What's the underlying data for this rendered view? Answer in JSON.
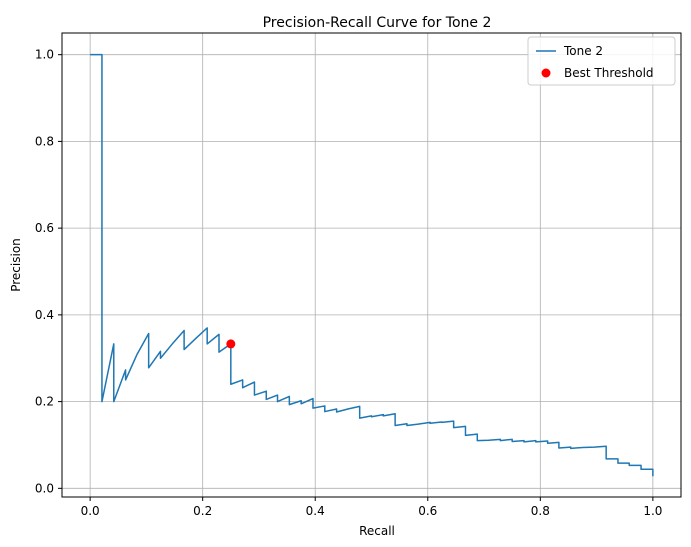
{
  "chart_data": {
    "type": "line",
    "title": "Precision-Recall Curve for Tone 2",
    "xlabel": "Recall",
    "ylabel": "Precision",
    "xlim": [
      -0.05,
      1.05
    ],
    "ylim": [
      -0.02,
      1.05
    ],
    "xticks": [
      0.0,
      0.2,
      0.4,
      0.6,
      0.8,
      1.0
    ],
    "xtick_labels": [
      "0.0",
      "0.2",
      "0.4",
      "0.6",
      "0.8",
      "1.0"
    ],
    "yticks": [
      0.0,
      0.2,
      0.4,
      0.6,
      0.8,
      1.0
    ],
    "ytick_labels": [
      "0.0",
      "0.2",
      "0.4",
      "0.6",
      "0.8",
      "1.0"
    ],
    "grid": true,
    "legend_position": "top-right",
    "series": [
      {
        "name": "Tone 2",
        "kind": "line",
        "color": "#1f77b4",
        "points": [
          [
            0.0,
            1.0
          ],
          [
            0.021,
            1.0
          ],
          [
            0.021,
            0.2
          ],
          [
            0.042,
            0.333
          ],
          [
            0.042,
            0.2
          ],
          [
            0.063,
            0.273
          ],
          [
            0.063,
            0.25
          ],
          [
            0.083,
            0.308
          ],
          [
            0.104,
            0.357
          ],
          [
            0.104,
            0.278
          ],
          [
            0.125,
            0.316
          ],
          [
            0.125,
            0.3
          ],
          [
            0.146,
            0.333
          ],
          [
            0.167,
            0.364
          ],
          [
            0.167,
            0.32
          ],
          [
            0.188,
            0.346
          ],
          [
            0.208,
            0.37
          ],
          [
            0.208,
            0.333
          ],
          [
            0.229,
            0.355
          ],
          [
            0.229,
            0.314
          ],
          [
            0.25,
            0.333
          ],
          [
            0.25,
            0.24
          ],
          [
            0.271,
            0.25
          ],
          [
            0.271,
            0.232
          ],
          [
            0.292,
            0.245
          ],
          [
            0.292,
            0.215
          ],
          [
            0.313,
            0.224
          ],
          [
            0.313,
            0.205
          ],
          [
            0.333,
            0.215
          ],
          [
            0.333,
            0.2
          ],
          [
            0.354,
            0.212
          ],
          [
            0.354,
            0.193
          ],
          [
            0.375,
            0.202
          ],
          [
            0.375,
            0.195
          ],
          [
            0.396,
            0.207
          ],
          [
            0.396,
            0.185
          ],
          [
            0.417,
            0.19
          ],
          [
            0.417,
            0.177
          ],
          [
            0.438,
            0.183
          ],
          [
            0.438,
            0.176
          ],
          [
            0.458,
            0.183
          ],
          [
            0.479,
            0.189
          ],
          [
            0.479,
            0.162
          ],
          [
            0.5,
            0.167
          ],
          [
            0.5,
            0.165
          ],
          [
            0.521,
            0.17
          ],
          [
            0.521,
            0.167
          ],
          [
            0.542,
            0.172
          ],
          [
            0.542,
            0.145
          ],
          [
            0.563,
            0.149
          ],
          [
            0.563,
            0.145
          ],
          [
            0.583,
            0.148
          ],
          [
            0.604,
            0.152
          ],
          [
            0.604,
            0.15
          ],
          [
            0.625,
            0.153
          ],
          [
            0.625,
            0.152
          ],
          [
            0.646,
            0.155
          ],
          [
            0.646,
            0.14
          ],
          [
            0.667,
            0.143
          ],
          [
            0.667,
            0.122
          ],
          [
            0.688,
            0.125
          ],
          [
            0.688,
            0.11
          ],
          [
            0.708,
            0.111
          ],
          [
            0.729,
            0.113
          ],
          [
            0.729,
            0.11
          ],
          [
            0.75,
            0.113
          ],
          [
            0.75,
            0.108
          ],
          [
            0.771,
            0.11
          ],
          [
            0.771,
            0.107
          ],
          [
            0.792,
            0.11
          ],
          [
            0.792,
            0.107
          ],
          [
            0.813,
            0.109
          ],
          [
            0.813,
            0.104
          ],
          [
            0.833,
            0.106
          ],
          [
            0.833,
            0.093
          ],
          [
            0.854,
            0.095
          ],
          [
            0.854,
            0.092
          ],
          [
            0.875,
            0.094
          ],
          [
            0.896,
            0.095
          ],
          [
            0.917,
            0.097
          ],
          [
            0.917,
            0.068
          ],
          [
            0.938,
            0.068
          ],
          [
            0.938,
            0.058
          ],
          [
            0.958,
            0.058
          ],
          [
            0.958,
            0.053
          ],
          [
            0.979,
            0.053
          ],
          [
            0.979,
            0.044
          ],
          [
            1.0,
            0.044
          ],
          [
            1.0,
            0.028
          ]
        ]
      },
      {
        "name": "Best Threshold",
        "kind": "scatter",
        "color": "#ff0000",
        "points": [
          [
            0.25,
            0.333
          ]
        ]
      }
    ]
  }
}
